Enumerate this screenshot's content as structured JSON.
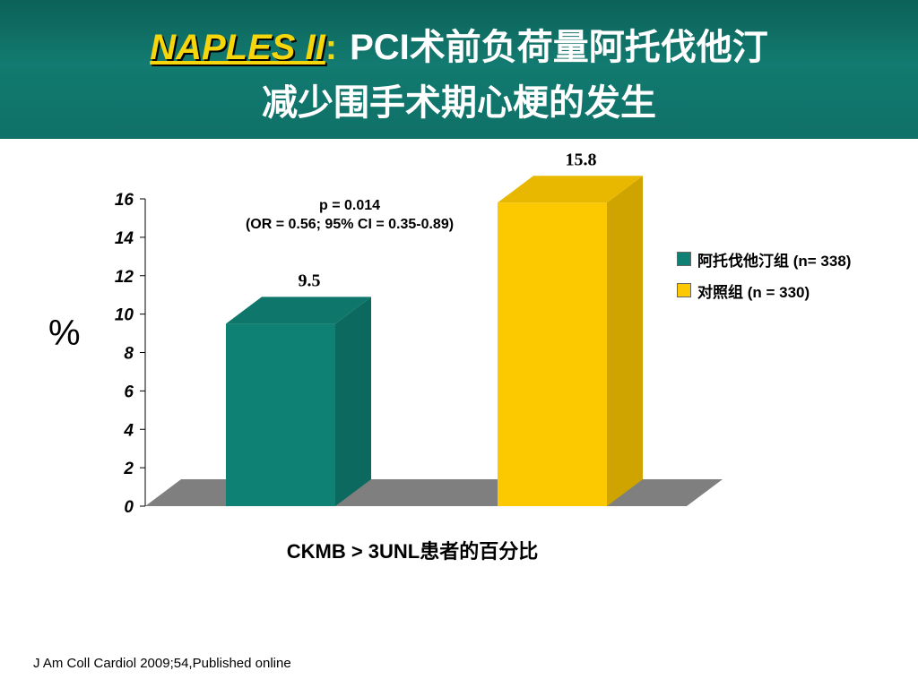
{
  "header": {
    "title_trial": "NAPLES II",
    "title_colon": ":",
    "title_rest_line1": "PCI术前负荷量阿托伐他汀",
    "title_line2": "减少围手术期心梗的发生"
  },
  "colors": {
    "atorvastatin": "#0f8074",
    "control": "#fcc800",
    "header_bg": "#0f7168",
    "title_highlight": "#f5d60c",
    "floor": "#7f7f7f"
  },
  "annotation": {
    "p_value": "p = 0.014",
    "odds_ratio": "(OR = 0.56; 95% CI = 0.35-0.89)"
  },
  "ylabel": "%",
  "xlabel": "CKMB > 3UNL患者的百分比",
  "citation": "J Am Coll Cardiol 2009;54,Published online",
  "chart_data": {
    "type": "bar",
    "style": "3d",
    "categories": [
      "阿托伐他汀组 (n= 338)",
      "对照组 (n = 330)"
    ],
    "series": [
      {
        "name": "阿托伐他汀组 (n= 338)",
        "value": 9.5,
        "label": "9.5",
        "color": "#0f8074"
      },
      {
        "name": "对照组 (n = 330)",
        "value": 15.8,
        "label": "15.8",
        "color": "#fcc800"
      }
    ],
    "ylim": [
      0,
      16
    ],
    "yticks": [
      "0",
      "2",
      "4",
      "6",
      "8",
      "10",
      "12",
      "14",
      "16"
    ],
    "ylabel": "%",
    "xlabel": "CKMB > 3UNL患者的百分比",
    "legend": "right",
    "grid": false
  }
}
